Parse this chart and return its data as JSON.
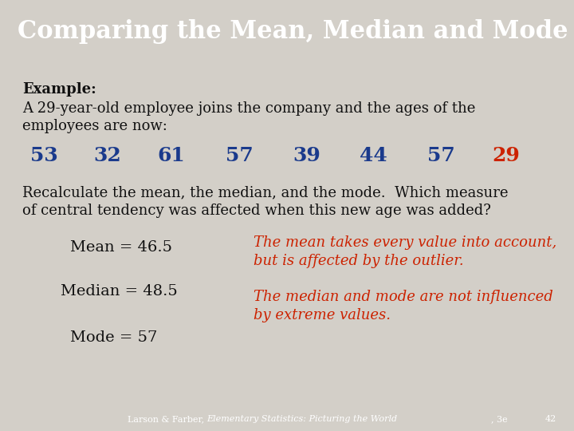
{
  "title": "Comparing the Mean, Median and Mode",
  "title_bg_color": "#6b8e23",
  "title_text_color": "#ffffff",
  "body_bg_color": "#d3cfc8",
  "footer_bg_color": "#8b1a1a",
  "footer_page": "42",
  "example_label": "Example:",
  "numbers": [
    "53",
    "32",
    "61",
    "57",
    "39",
    "44",
    "57",
    "29"
  ],
  "number_colors": [
    "#1a3a8c",
    "#1a3a8c",
    "#1a3a8c",
    "#1a3a8c",
    "#1a3a8c",
    "#1a3a8c",
    "#1a3a8c",
    "#cc2200"
  ],
  "mean_label": "Mean = 46.5",
  "median_label": "Median = 48.5",
  "mode_label": "Mode = 57",
  "mean_explanation_1": "The mean takes every value into account,",
  "mean_explanation_2": "but is affected by the outlier.",
  "median_mode_explanation_1": "The median and mode are not influenced",
  "median_mode_explanation_2": "by extreme values.",
  "red_text_color": "#cc2200",
  "dark_blue_text_color": "#1a3a8c",
  "black_text_color": "#111111",
  "separator_color": "#2244aa",
  "x_positions": [
    55,
    135,
    215,
    300,
    385,
    468,
    553,
    635
  ]
}
